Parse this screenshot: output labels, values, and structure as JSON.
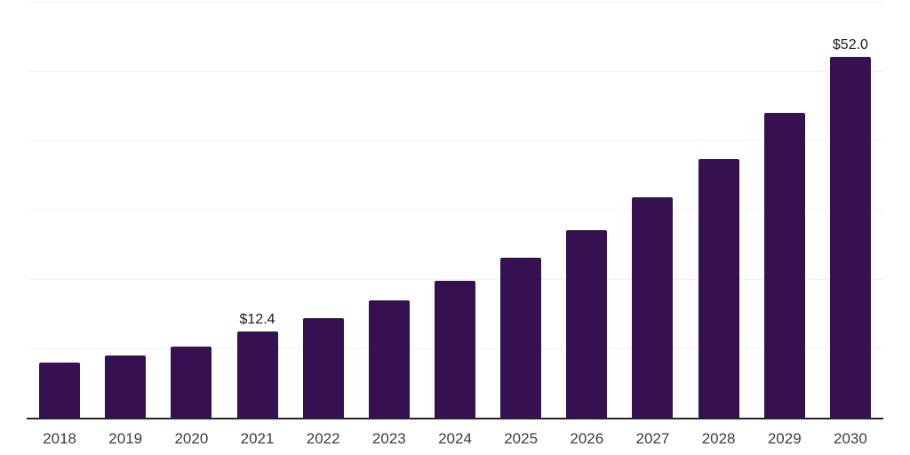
{
  "chart_data": {
    "type": "bar",
    "title": "",
    "xlabel": "",
    "ylabel": "",
    "categories": [
      "2018",
      "2019",
      "2020",
      "2021",
      "2022",
      "2023",
      "2024",
      "2025",
      "2026",
      "2027",
      "2028",
      "2029",
      "2030"
    ],
    "values": [
      8.0,
      9.0,
      10.3,
      12.4,
      14.3,
      16.9,
      19.7,
      23.1,
      27.1,
      31.8,
      37.3,
      44.0,
      52.0
    ],
    "data_labels": [
      {
        "category": "2021",
        "text": "$12.4"
      },
      {
        "category": "2030",
        "text": "$52.0"
      }
    ],
    "ylim": [
      0,
      60
    ],
    "grid": true,
    "grid_step": 10,
    "y_tick_labels_visible": false,
    "legend": false
  },
  "colors": {
    "background": "#ffffff",
    "bar": "#361152",
    "axis_line": "#262626",
    "gridline": "#f2f2f2",
    "tick_label": "#3d3d3d",
    "data_label": "#1a1a1a"
  }
}
